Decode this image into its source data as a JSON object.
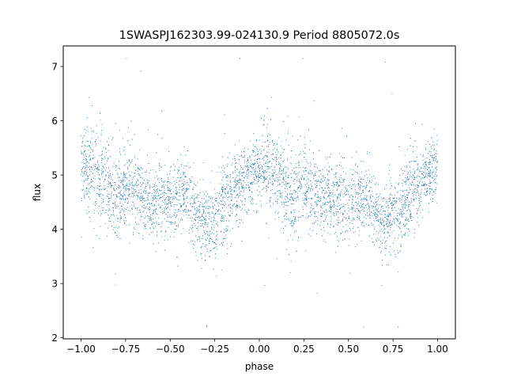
{
  "chart_data": {
    "type": "scatter",
    "title": "1SWASPJ162303.99-024130.9 Period 8805072.0s",
    "xlabel": "phase",
    "ylabel": "flux",
    "xlim": [
      -1.1,
      1.1
    ],
    "ylim": [
      1.98,
      7.38
    ],
    "xticks": [
      {
        "value": -1.0,
        "label": "−1.00"
      },
      {
        "value": -0.75,
        "label": "−0.75"
      },
      {
        "value": -0.5,
        "label": "−0.50"
      },
      {
        "value": -0.25,
        "label": "−0.25"
      },
      {
        "value": 0.0,
        "label": "0.00"
      },
      {
        "value": 0.25,
        "label": "0.25"
      },
      {
        "value": 0.5,
        "label": "0.50"
      },
      {
        "value": 0.75,
        "label": "0.75"
      },
      {
        "value": 1.0,
        "label": "1.00"
      }
    ],
    "yticks": [
      {
        "value": 2,
        "label": "2"
      },
      {
        "value": 3,
        "label": "3"
      },
      {
        "value": 4,
        "label": "4"
      },
      {
        "value": 5,
        "label": "5"
      },
      {
        "value": 6,
        "label": "6"
      },
      {
        "value": 7,
        "label": "7"
      }
    ],
    "grid": false,
    "marker_color": "#1f77b4",
    "series": [
      {
        "phase": [
          -1.0,
          -0.95,
          -0.9,
          -0.85,
          -0.8,
          -0.75,
          -0.7,
          -0.65,
          -0.6,
          -0.55,
          -0.5,
          -0.45,
          -0.4,
          -0.35,
          -0.3,
          -0.25,
          -0.2,
          -0.15,
          -0.1,
          -0.05,
          0.0,
          0.05,
          0.1,
          0.15,
          0.2,
          0.25,
          0.3,
          0.35,
          0.4,
          0.45,
          0.5,
          0.55,
          0.6,
          0.65,
          0.7,
          0.75,
          0.8,
          0.85,
          0.9,
          0.95,
          1.0
        ],
        "flux_mean": [
          5.2,
          5.1,
          4.9,
          4.8,
          4.5,
          4.9,
          4.7,
          4.6,
          4.5,
          4.6,
          4.5,
          4.6,
          4.6,
          4.3,
          4.1,
          4.2,
          4.5,
          4.6,
          4.8,
          5.0,
          5.2,
          5.1,
          4.9,
          4.8,
          4.5,
          4.9,
          4.7,
          4.6,
          4.5,
          4.6,
          4.5,
          4.6,
          4.6,
          4.3,
          4.1,
          4.2,
          4.5,
          4.6,
          4.8,
          5.0,
          5.2
        ],
        "flux_spread": [
          0.45,
          0.55,
          0.55,
          0.6,
          0.55,
          0.5,
          0.5,
          0.45,
          0.45,
          0.45,
          0.45,
          0.45,
          0.45,
          0.45,
          0.45,
          0.5,
          0.5,
          0.5,
          0.45,
          0.4,
          0.45,
          0.55,
          0.55,
          0.6,
          0.55,
          0.5,
          0.5,
          0.45,
          0.45,
          0.45,
          0.45,
          0.45,
          0.45,
          0.45,
          0.45,
          0.5,
          0.5,
          0.5,
          0.45,
          0.4,
          0.45
        ]
      }
    ]
  }
}
